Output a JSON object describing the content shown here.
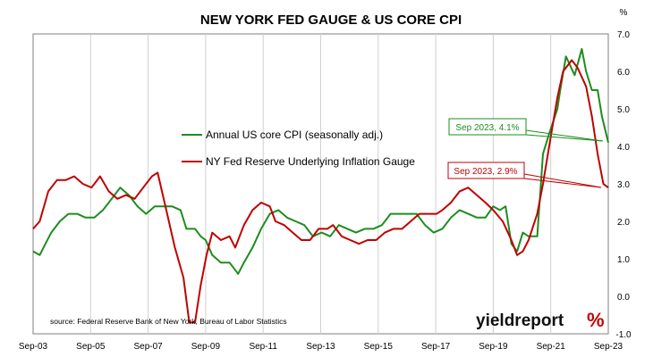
{
  "chart_data": {
    "type": "line",
    "title": "NEW YORK FED GAUGE & US CORE CPI",
    "y_unit": "%",
    "ylim": [
      -1.0,
      7.0
    ],
    "y_ticks": [
      "7.0",
      "6.0",
      "5.0",
      "4.0",
      "3.0",
      "2.0",
      "1.0",
      "0.0",
      "-1.0"
    ],
    "x_ticks": [
      "Sep-03",
      "Sep-05",
      "Sep-07",
      "Sep-09",
      "Sep-11",
      "Sep-13",
      "Sep-15",
      "Sep-17",
      "Sep-19",
      "Sep-21",
      "Sep-23"
    ],
    "x_unit": "year (decimal)",
    "xlim": [
      2003.67,
      2023.67
    ],
    "grid": "vertical gridlines at x ticks",
    "series": [
      {
        "name": "Annual US core CPI (seasonally adj.)",
        "color": "#1e8c1e",
        "points": [
          [
            2003.67,
            1.2
          ],
          [
            2003.9,
            1.1
          ],
          [
            2004.1,
            1.4
          ],
          [
            2004.3,
            1.7
          ],
          [
            2004.6,
            2.0
          ],
          [
            2004.9,
            2.2
          ],
          [
            2005.2,
            2.2
          ],
          [
            2005.5,
            2.1
          ],
          [
            2005.8,
            2.1
          ],
          [
            2006.1,
            2.3
          ],
          [
            2006.4,
            2.6
          ],
          [
            2006.7,
            2.9
          ],
          [
            2007.0,
            2.7
          ],
          [
            2007.3,
            2.4
          ],
          [
            2007.6,
            2.2
          ],
          [
            2007.9,
            2.4
          ],
          [
            2008.2,
            2.4
          ],
          [
            2008.5,
            2.4
          ],
          [
            2008.8,
            2.3
          ],
          [
            2009.0,
            1.8
          ],
          [
            2009.3,
            1.8
          ],
          [
            2009.5,
            1.6
          ],
          [
            2009.67,
            1.5
          ],
          [
            2009.9,
            1.1
          ],
          [
            2010.2,
            0.9
          ],
          [
            2010.5,
            0.9
          ],
          [
            2010.8,
            0.6
          ],
          [
            2011.0,
            0.9
          ],
          [
            2011.3,
            1.3
          ],
          [
            2011.6,
            1.8
          ],
          [
            2011.9,
            2.2
          ],
          [
            2012.2,
            2.3
          ],
          [
            2012.5,
            2.1
          ],
          [
            2012.8,
            2.0
          ],
          [
            2013.1,
            1.9
          ],
          [
            2013.4,
            1.6
          ],
          [
            2013.7,
            1.7
          ],
          [
            2014.0,
            1.6
          ],
          [
            2014.3,
            1.9
          ],
          [
            2014.6,
            1.8
          ],
          [
            2014.9,
            1.7
          ],
          [
            2015.2,
            1.8
          ],
          [
            2015.5,
            1.8
          ],
          [
            2015.8,
            1.9
          ],
          [
            2016.1,
            2.2
          ],
          [
            2016.4,
            2.2
          ],
          [
            2016.7,
            2.2
          ],
          [
            2017.0,
            2.2
          ],
          [
            2017.3,
            1.9
          ],
          [
            2017.6,
            1.7
          ],
          [
            2017.9,
            1.8
          ],
          [
            2018.2,
            2.1
          ],
          [
            2018.5,
            2.3
          ],
          [
            2018.8,
            2.2
          ],
          [
            2019.1,
            2.1
          ],
          [
            2019.4,
            2.1
          ],
          [
            2019.67,
            2.4
          ],
          [
            2019.9,
            2.3
          ],
          [
            2020.1,
            2.4
          ],
          [
            2020.3,
            1.4
          ],
          [
            2020.5,
            1.2
          ],
          [
            2020.7,
            1.7
          ],
          [
            2020.9,
            1.6
          ],
          [
            2021.2,
            1.6
          ],
          [
            2021.4,
            3.8
          ],
          [
            2021.6,
            4.3
          ],
          [
            2021.9,
            5.0
          ],
          [
            2022.0,
            5.5
          ],
          [
            2022.2,
            6.4
          ],
          [
            2022.5,
            5.9
          ],
          [
            2022.75,
            6.6
          ],
          [
            2022.9,
            6.0
          ],
          [
            2023.1,
            5.5
          ],
          [
            2023.3,
            5.5
          ],
          [
            2023.45,
            4.8
          ],
          [
            2023.67,
            4.1
          ]
        ]
      },
      {
        "name": "NY Fed Reserve Underlying Inflation Gauge",
        "color": "#c00000",
        "points": [
          [
            2003.67,
            1.8
          ],
          [
            2003.9,
            2.0
          ],
          [
            2004.2,
            2.8
          ],
          [
            2004.5,
            3.1
          ],
          [
            2004.8,
            3.1
          ],
          [
            2005.1,
            3.2
          ],
          [
            2005.4,
            3.0
          ],
          [
            2005.7,
            2.9
          ],
          [
            2006.0,
            3.2
          ],
          [
            2006.3,
            2.8
          ],
          [
            2006.6,
            2.6
          ],
          [
            2006.9,
            2.7
          ],
          [
            2007.2,
            2.6
          ],
          [
            2007.5,
            2.9
          ],
          [
            2007.8,
            3.2
          ],
          [
            2008.0,
            3.3
          ],
          [
            2008.3,
            2.3
          ],
          [
            2008.6,
            1.3
          ],
          [
            2008.9,
            0.5
          ],
          [
            2009.1,
            -0.7
          ],
          [
            2009.3,
            -0.7
          ],
          [
            2009.5,
            0.3
          ],
          [
            2009.7,
            1.1
          ],
          [
            2009.9,
            1.7
          ],
          [
            2010.2,
            1.5
          ],
          [
            2010.5,
            1.6
          ],
          [
            2010.7,
            1.3
          ],
          [
            2011.0,
            1.9
          ],
          [
            2011.3,
            2.3
          ],
          [
            2011.6,
            2.5
          ],
          [
            2011.9,
            2.4
          ],
          [
            2012.1,
            2.0
          ],
          [
            2012.4,
            1.9
          ],
          [
            2012.7,
            1.7
          ],
          [
            2013.0,
            1.5
          ],
          [
            2013.3,
            1.5
          ],
          [
            2013.6,
            1.8
          ],
          [
            2013.9,
            1.8
          ],
          [
            2014.1,
            1.9
          ],
          [
            2014.4,
            1.6
          ],
          [
            2014.7,
            1.5
          ],
          [
            2015.0,
            1.4
          ],
          [
            2015.3,
            1.5
          ],
          [
            2015.6,
            1.5
          ],
          [
            2015.9,
            1.7
          ],
          [
            2016.2,
            1.8
          ],
          [
            2016.5,
            1.8
          ],
          [
            2016.8,
            2.0
          ],
          [
            2017.1,
            2.2
          ],
          [
            2017.4,
            2.2
          ],
          [
            2017.7,
            2.2
          ],
          [
            2017.9,
            2.3
          ],
          [
            2018.2,
            2.5
          ],
          [
            2018.5,
            2.8
          ],
          [
            2018.8,
            2.9
          ],
          [
            2019.1,
            2.7
          ],
          [
            2019.4,
            2.5
          ],
          [
            2019.67,
            2.3
          ],
          [
            2020.0,
            2.0
          ],
          [
            2020.3,
            1.5
          ],
          [
            2020.5,
            1.1
          ],
          [
            2020.7,
            1.2
          ],
          [
            2020.9,
            1.5
          ],
          [
            2021.2,
            2.2
          ],
          [
            2021.4,
            3.0
          ],
          [
            2021.7,
            4.4
          ],
          [
            2021.9,
            5.3
          ],
          [
            2022.1,
            6.0
          ],
          [
            2022.4,
            6.3
          ],
          [
            2022.6,
            6.1
          ],
          [
            2022.9,
            5.6
          ],
          [
            2023.1,
            4.8
          ],
          [
            2023.3,
            3.8
          ],
          [
            2023.5,
            3.0
          ],
          [
            2023.67,
            2.9
          ]
        ]
      }
    ],
    "legend": {
      "placement": "center",
      "items": [
        "Annual US core CPI (seasonally adj.)",
        "NY Fed Reserve Underlying Inflation Gauge"
      ]
    },
    "annotations": [
      {
        "text": "Sep 2023, 4.1%",
        "color": "#1e8c1e",
        "points_to": [
          2023.67,
          4.1
        ]
      },
      {
        "text": "Sep 2023, 2.9%",
        "color": "#c00000",
        "points_to": [
          2023.67,
          2.9
        ]
      }
    ],
    "source": "source: Federal Reserve Bank of New York, Bureau of Labor Statistics",
    "logo": {
      "text": "yieldreport",
      "symbol": "%"
    }
  }
}
